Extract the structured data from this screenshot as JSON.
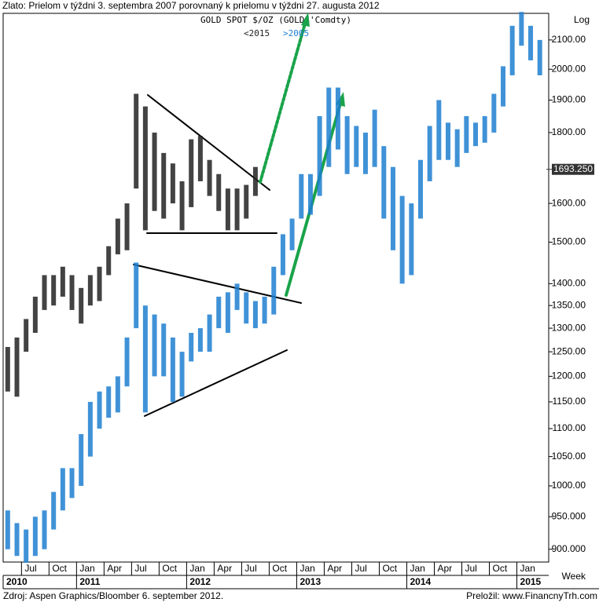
{
  "chart_data": {
    "type": "range-bar",
    "title": "Zlato: Prielom v týždni 3. septembra 2007 porovnaný k prielomu v týždni 27. augusta 2012",
    "legend_title": "GOLD  SPOT  $/OZ  (GOLDS'Comdty)",
    "source": "Zdroj: Aspen Graphics/Bloomber 6. september 2012.",
    "translator": "Preložil: www.FinancnyTrh.com",
    "y_scale_label": "Log",
    "x_unit_label": "Week",
    "log_scale": true,
    "categories": [
      null,
      null,
      "Jul",
      null,
      null,
      "Oct",
      null,
      null,
      "Jan",
      null,
      null,
      "Apr",
      null,
      null,
      "Jul",
      null,
      null,
      "Oct",
      null,
      null,
      "Jan",
      null,
      null,
      "Apr",
      null,
      null,
      "Jul",
      null,
      null,
      "Oct",
      null,
      null,
      "Jan",
      null,
      null,
      "Apr",
      null,
      null,
      "Jul",
      null,
      null,
      "Oct",
      null,
      null,
      "Jan",
      null,
      null,
      "Apr",
      null,
      null,
      "Jul",
      null,
      null,
      "Oct",
      null,
      null,
      "Jan",
      null,
      null
    ],
    "year_categories": [
      "2010",
      null,
      null,
      null,
      null,
      null,
      null,
      null,
      "2011",
      null,
      null,
      null,
      null,
      null,
      null,
      null,
      null,
      null,
      null,
      null,
      "2012",
      null,
      null,
      null,
      null,
      null,
      null,
      null,
      null,
      null,
      null,
      null,
      "2013",
      null,
      null,
      null,
      null,
      null,
      null,
      null,
      null,
      null,
      null,
      null,
      "2014",
      null,
      null,
      null,
      null,
      null,
      null,
      null,
      null,
      null,
      null,
      null,
      "2015",
      null,
      null
    ],
    "series": [
      {
        "name": "<2015",
        "color": "#222222",
        "low": [
          1170,
          1160,
          1250,
          1290,
          1340,
          1350,
          1370,
          1340,
          1310,
          1350,
          1360,
          1420,
          1470,
          1480,
          1640,
          1530,
          1580,
          1560,
          1600,
          1530,
          1590,
          1660,
          1620,
          1580,
          1530,
          1530,
          1560,
          1620,
          null,
          null,
          null,
          null,
          null,
          null,
          null,
          null,
          null,
          null,
          null,
          null,
          null,
          null,
          null,
          null,
          null,
          null,
          null,
          null,
          null,
          null,
          null,
          null,
          null,
          null,
          null,
          null,
          null,
          null,
          null
        ],
        "high": [
          1260,
          1280,
          1320,
          1370,
          1420,
          1420,
          1440,
          1420,
          1390,
          1420,
          1440,
          1490,
          1560,
          1600,
          1920,
          1880,
          1800,
          1740,
          1710,
          1660,
          1780,
          1790,
          1720,
          1680,
          1640,
          1640,
          1650,
          1700,
          null,
          null,
          null,
          null,
          null,
          null,
          null,
          null,
          null,
          null,
          null,
          null,
          null,
          null,
          null,
          null,
          null,
          null,
          null,
          null,
          null,
          null,
          null,
          null,
          null,
          null,
          null,
          null,
          null,
          null,
          null
        ]
      },
      {
        "name": ">2005",
        "color": "#1f7fd0",
        "low": [
          900,
          890,
          880,
          890,
          900,
          930,
          960,
          980,
          1000,
          1050,
          1100,
          1120,
          1130,
          1180,
          1300,
          1130,
          1200,
          1200,
          1150,
          1160,
          1230,
          1250,
          1250,
          1300,
          1290,
          1340,
          1310,
          1300,
          1310,
          1330,
          1420,
          1480,
          1560,
          1570,
          1620,
          1700,
          1750,
          1680,
          1700,
          1680,
          1700,
          1560,
          1480,
          1400,
          1420,
          1560,
          1660,
          1720,
          1720,
          1700,
          1740,
          1760,
          1770,
          1800,
          1880,
          1980,
          2080,
          2030,
          1980
        ],
        "high": [
          960,
          940,
          930,
          950,
          960,
          990,
          1030,
          1030,
          1090,
          1150,
          1170,
          1180,
          1200,
          1280,
          1450,
          1350,
          1330,
          1310,
          1280,
          1250,
          1290,
          1300,
          1330,
          1370,
          1380,
          1400,
          1380,
          1360,
          1370,
          1440,
          1520,
          1560,
          1680,
          1680,
          1850,
          1940,
          1940,
          1850,
          1820,
          1800,
          1870,
          1760,
          1700,
          1620,
          1600,
          1720,
          1820,
          1900,
          1830,
          1810,
          1850,
          1830,
          1850,
          1920,
          2010,
          2150,
          2200,
          2150,
          2100
        ]
      }
    ],
    "current_price": {
      "value": 1693.25,
      "label": "1693.250"
    },
    "ylim": [
      881,
      2195
    ],
    "yticks": [
      {
        "value": 900,
        "label": "900.000"
      },
      {
        "value": 950,
        "label": "950.000"
      },
      {
        "value": 1000,
        "label": "1000.00"
      },
      {
        "value": 1050,
        "label": "1050.00"
      },
      {
        "value": 1100,
        "label": "1100.00"
      },
      {
        "value": 1150,
        "label": "1150.00"
      },
      {
        "value": 1200,
        "label": "1200.00"
      },
      {
        "value": 1250,
        "label": "1250.00"
      },
      {
        "value": 1300,
        "label": "1300.00"
      },
      {
        "value": 1350,
        "label": "1350.00"
      },
      {
        "value": 1400,
        "label": "1400.00"
      },
      {
        "value": 1500,
        "label": "1500.00"
      },
      {
        "value": 1600,
        "label": "1600.00"
      },
      {
        "value": 1800,
        "label": "1800.00"
      },
      {
        "value": 1900,
        "label": "1900.00"
      },
      {
        "value": 2000,
        "label": "2000.00"
      },
      {
        "value": 2100,
        "label": "2100.00"
      }
    ],
    "grid": false
  }
}
